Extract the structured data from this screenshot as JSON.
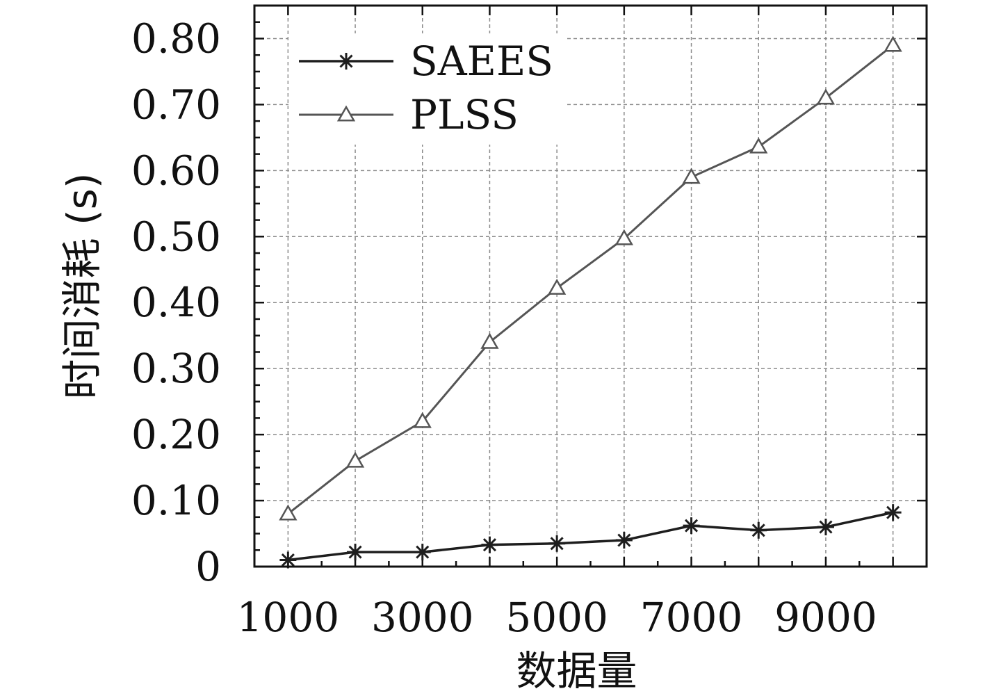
{
  "chart_data": {
    "type": "line",
    "title": "",
    "xlabel": "数据量",
    "ylabel": "时间消耗 (s)",
    "x": [
      1000,
      2000,
      3000,
      4000,
      5000,
      6000,
      7000,
      8000,
      9000,
      10000
    ],
    "xlim": [
      500,
      10500
    ],
    "ylim": [
      0,
      0.85
    ],
    "xticks": [
      1000,
      3000,
      5000,
      7000,
      9000
    ],
    "xtick_labels": [
      "1000",
      "3000",
      "5000",
      "7000",
      "9000"
    ],
    "yticks": [
      0,
      0.1,
      0.2,
      0.3,
      0.4,
      0.5,
      0.6,
      0.7,
      0.8
    ],
    "ytick_labels": [
      "0",
      "0.10",
      "0.20",
      "0.30",
      "0.40",
      "0.50",
      "0.60",
      "0.70",
      "0.80"
    ],
    "grid": true,
    "legend_position": "top-left",
    "series": [
      {
        "name": "SAEES",
        "marker": "asterisk",
        "color": "#1e1e1e",
        "values": [
          0.01,
          0.022,
          0.022,
          0.033,
          0.035,
          0.04,
          0.062,
          0.055,
          0.06,
          0.082
        ]
      },
      {
        "name": "PLSS",
        "marker": "triangle",
        "color": "#555555",
        "values": [
          0.08,
          0.16,
          0.22,
          0.34,
          0.422,
          0.497,
          0.59,
          0.636,
          0.71,
          0.79
        ]
      }
    ]
  }
}
